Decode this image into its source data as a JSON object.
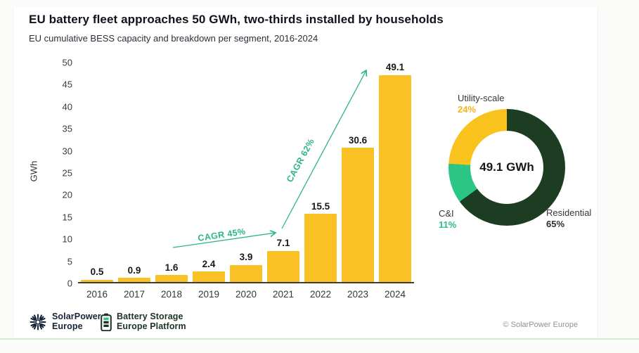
{
  "header": {
    "title": "EU battery fleet approaches 50 GWh, two-thirds installed by households",
    "subtitle": "EU cumulative BESS capacity and breakdown per segment, 2016-2024"
  },
  "chart_data": [
    {
      "type": "bar",
      "title": "EU cumulative BESS capacity per year",
      "categories": [
        "2016",
        "2017",
        "2018",
        "2019",
        "2020",
        "2021",
        "2022",
        "2023",
        "2024"
      ],
      "values": [
        0.5,
        0.9,
        1.6,
        2.4,
        3.9,
        7.1,
        15.5,
        30.6,
        49.1
      ],
      "xlabel": "",
      "ylabel": "GWh",
      "ylim": [
        0,
        50
      ],
      "y_ticks": [
        0,
        5,
        10,
        15,
        20,
        25,
        30,
        35,
        40,
        45,
        50
      ],
      "bar_color": "#FAC125",
      "grid": false,
      "legend": false,
      "annotations": [
        {
          "label": "CAGR 45%",
          "from_year": "2018",
          "to_year": "2021"
        },
        {
          "label": "CAGR 62%",
          "from_year": "2021",
          "to_year": "2024"
        }
      ],
      "annotation_color": "#2CB586"
    },
    {
      "type": "pie",
      "subtype": "donut",
      "center_label": "49.1 GWh",
      "segments": [
        {
          "label": "Residential",
          "pct": 65,
          "pct_label": "65%",
          "color": "#1C3D22",
          "pct_text_color": "#2b2f33"
        },
        {
          "label": "C&I",
          "pct": 11,
          "pct_label": "11%",
          "color": "#2BC584",
          "pct_text_color": "#2BBD83"
        },
        {
          "label": "Utility-scale",
          "pct": 24,
          "pct_label": "24%",
          "color": "#FAC21D",
          "pct_text_color": "#F2B51B"
        }
      ],
      "clockwise_from_top": true
    }
  ],
  "footer": {
    "logo_solarpower": {
      "line1": "SolarPower",
      "line2": "Europe"
    },
    "logo_battery": {
      "line1": "Battery Storage",
      "line2": "Europe Platform"
    },
    "copyright": "© SolarPower Europe"
  }
}
